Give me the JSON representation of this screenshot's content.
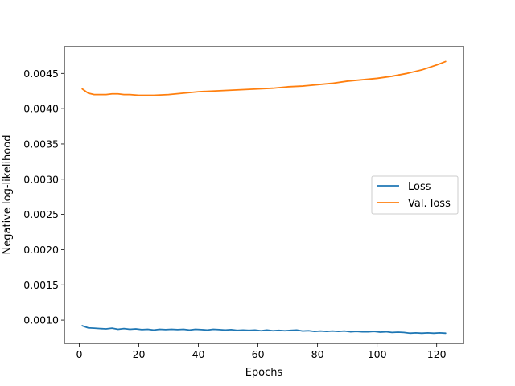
{
  "chart_data": {
    "type": "line",
    "title": "",
    "xlabel": "Epochs",
    "ylabel": "Negative log-likelihood",
    "xlim": [
      -5,
      129
    ],
    "ylim": [
      0.00067,
      0.00488
    ],
    "xticks": [
      0,
      20,
      40,
      60,
      80,
      100,
      120
    ],
    "xtick_labels": [
      "0",
      "20",
      "40",
      "60",
      "80",
      "100",
      "120"
    ],
    "yticks": [
      0.001,
      0.0015,
      0.002,
      0.0025,
      0.003,
      0.0035,
      0.004,
      0.0045
    ],
    "ytick_labels": [
      "0.0010",
      "0.0015",
      "0.0020",
      "0.0025",
      "0.0030",
      "0.0035",
      "0.0040",
      "0.0045"
    ],
    "grid": false,
    "legend_position": "center-right",
    "series": [
      {
        "name": "Loss",
        "color": "#1f77b4",
        "x": [
          1,
          3,
          5,
          7,
          9,
          11,
          13,
          15,
          17,
          19,
          21,
          23,
          25,
          27,
          29,
          31,
          33,
          35,
          37,
          39,
          41,
          43,
          45,
          47,
          49,
          51,
          53,
          55,
          57,
          59,
          61,
          63,
          65,
          67,
          69,
          71,
          73,
          75,
          77,
          79,
          81,
          83,
          85,
          87,
          89,
          91,
          93,
          95,
          97,
          99,
          101,
          103,
          105,
          107,
          109,
          111,
          113,
          115,
          117,
          119,
          121,
          123
        ],
        "values": [
          0.00092,
          0.00089,
          0.000885,
          0.00088,
          0.000875,
          0.000885,
          0.00087,
          0.00088,
          0.00087,
          0.000875,
          0.000865,
          0.00087,
          0.00086,
          0.00087,
          0.000865,
          0.00087,
          0.000865,
          0.00087,
          0.00086,
          0.00087,
          0.000865,
          0.00086,
          0.00087,
          0.000865,
          0.00086,
          0.000865,
          0.000855,
          0.00086,
          0.000855,
          0.00086,
          0.00085,
          0.00086,
          0.00085,
          0.000855,
          0.00085,
          0.000855,
          0.00086,
          0.000845,
          0.00085,
          0.00084,
          0.000845,
          0.00084,
          0.000845,
          0.00084,
          0.000845,
          0.000835,
          0.00084,
          0.000835,
          0.000835,
          0.00084,
          0.00083,
          0.000835,
          0.000825,
          0.00083,
          0.000825,
          0.000815,
          0.00082,
          0.000815,
          0.00082,
          0.000815,
          0.00082,
          0.000815
        ]
      },
      {
        "name": "Val. loss",
        "color": "#ff7f0e",
        "x": [
          1,
          3,
          5,
          7,
          9,
          11,
          13,
          15,
          17,
          20,
          25,
          30,
          35,
          40,
          45,
          50,
          55,
          60,
          65,
          70,
          75,
          80,
          85,
          90,
          95,
          100,
          105,
          110,
          115,
          120,
          123
        ],
        "values": [
          0.00428,
          0.00422,
          0.0042,
          0.0042,
          0.0042,
          0.00421,
          0.00421,
          0.0042,
          0.0042,
          0.00419,
          0.00419,
          0.0042,
          0.00422,
          0.00424,
          0.00425,
          0.00426,
          0.00427,
          0.00428,
          0.00429,
          0.00431,
          0.00432,
          0.00434,
          0.00436,
          0.00439,
          0.00441,
          0.00443,
          0.00446,
          0.0045,
          0.00455,
          0.00462,
          0.00467
        ]
      }
    ]
  }
}
